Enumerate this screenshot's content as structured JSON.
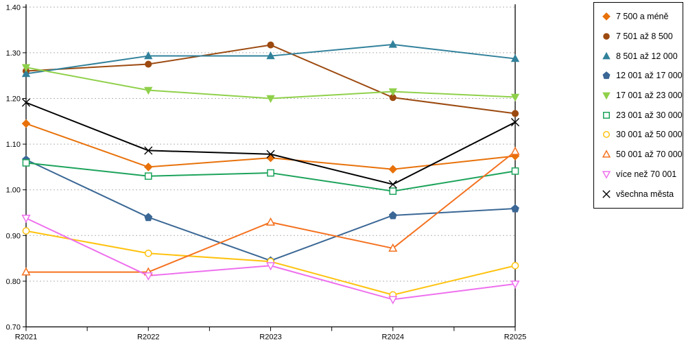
{
  "chart_data": {
    "type": "line",
    "title": "",
    "xlabel": "",
    "ylabel": "",
    "x_labels": [
      "R2021",
      "R2022",
      "R2023",
      "R2024",
      "R2025"
    ],
    "y_tick_labels": [
      "0.70",
      "0.80",
      "0.90",
      "1.00",
      "1.10",
      "1.20",
      "1.30",
      "1.40"
    ],
    "ylim": [
      0.7,
      1.4
    ],
    "y_step": 0.1,
    "grid": "horizontal-dotted",
    "legend_position": "right",
    "series": [
      {
        "name": "7 500 a méně",
        "marker": "diamond",
        "style": "filled",
        "color": "#E8710A",
        "values": [
          1.145,
          1.05,
          1.07,
          1.045,
          1.074
        ]
      },
      {
        "name": "7 501 až 8 500",
        "marker": "circle",
        "style": "filled",
        "color": "#9C4A10",
        "values": [
          1.26,
          1.275,
          1.317,
          1.202,
          1.167
        ]
      },
      {
        "name": "8 501 až 12 000",
        "marker": "triangle-up",
        "style": "filled",
        "color": "#31819B",
        "values": [
          1.254,
          1.293,
          1.293,
          1.318,
          1.287
        ]
      },
      {
        "name": "12 001 až 17 000",
        "marker": "pentagon",
        "style": "filled",
        "color": "#3A6795",
        "values": [
          1.066,
          0.94,
          0.845,
          0.944,
          0.959
        ]
      },
      {
        "name": "17 001 až 23 000",
        "marker": "triangle-down",
        "style": "filled",
        "color": "#8FD04A",
        "values": [
          1.268,
          1.218,
          1.2,
          1.215,
          1.203
        ]
      },
      {
        "name": "23 001 až 30 000",
        "marker": "square",
        "style": "open",
        "color": "#1CA35B",
        "values": [
          1.059,
          1.03,
          1.037,
          0.997,
          1.041
        ]
      },
      {
        "name": "30 001 až 50 000",
        "marker": "circle",
        "style": "open",
        "color": "#FFC20E",
        "values": [
          0.91,
          0.861,
          0.843,
          0.77,
          0.834
        ]
      },
      {
        "name": "50 001 až 70 000",
        "marker": "triangle-up",
        "style": "open",
        "color": "#F4711F",
        "values": [
          0.82,
          0.82,
          0.929,
          0.872,
          1.084
        ]
      },
      {
        "name": "více než 70 001",
        "marker": "triangle-down",
        "style": "open",
        "color": "#EE6FEE",
        "values": [
          0.938,
          0.812,
          0.834,
          0.76,
          0.794
        ]
      },
      {
        "name": "všechna města",
        "marker": "x",
        "style": "line",
        "color": "#000000",
        "values": [
          1.191,
          1.086,
          1.078,
          1.012,
          1.148
        ]
      }
    ]
  },
  "colors": {
    "background": "#FFFFFF",
    "grid": "#B3B3B3",
    "axis": "#000000"
  }
}
